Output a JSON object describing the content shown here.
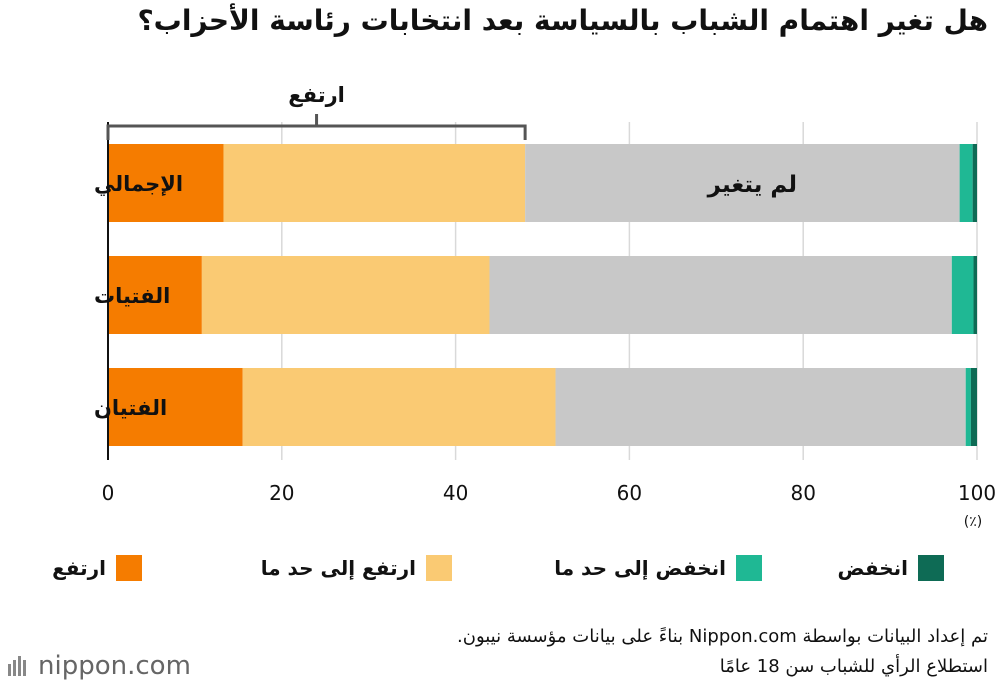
{
  "title": "هل تغير اهتمام الشباب بالسياسة بعد انتخابات رئاسة الأحزاب؟",
  "chart_data": {
    "type": "bar",
    "orientation": "horizontal",
    "stacked": true,
    "categories": [
      "الإجمالي",
      "الفتيات",
      "الفتيان"
    ],
    "series": [
      {
        "name": "ارتفع",
        "color": "#F57C00",
        "values": [
          13.3,
          10.8,
          15.5
        ]
      },
      {
        "name": "ارتفع إلى حد ما",
        "color": "#FACA73",
        "values": [
          34.7,
          33.1,
          36.0
        ]
      },
      {
        "name": "لم يتغير",
        "color": "#C8C8C8",
        "values": [
          50.0,
          53.2,
          47.2
        ]
      },
      {
        "name": "انخفض إلى حد ما",
        "color": "#1FB894",
        "values": [
          1.5,
          2.5,
          0.6
        ]
      },
      {
        "name": "انخفض",
        "color": "#0E6B55",
        "values": [
          0.5,
          0.4,
          0.7
        ]
      }
    ],
    "xlim": [
      0,
      100
    ],
    "xticks": [
      0,
      20,
      40,
      60,
      80,
      100
    ],
    "unit_label": "(٪)",
    "grid": true,
    "annotations": {
      "bar_label": "لم يتغير",
      "bracket_label": "ارتفع",
      "bracket_range": [
        0,
        48
      ]
    },
    "legend_position": "bottom"
  },
  "legend": {
    "items": [
      {
        "label": "ارتفع",
        "color": "#F57C00"
      },
      {
        "label": "ارتفع إلى حد ما",
        "color": "#FACA73"
      },
      {
        "label": "انخفض إلى حد ما",
        "color": "#1FB894"
      },
      {
        "label": "انخفض",
        "color": "#0E6B55"
      }
    ]
  },
  "source": {
    "line1": "تم إعداد البيانات بواسطة Nippon.com بناءً على بيانات مؤسسة نيبون.",
    "line2": "استطلاع الرأي للشباب سن 18 عامًا"
  },
  "logo": {
    "text": "nippon.com"
  }
}
